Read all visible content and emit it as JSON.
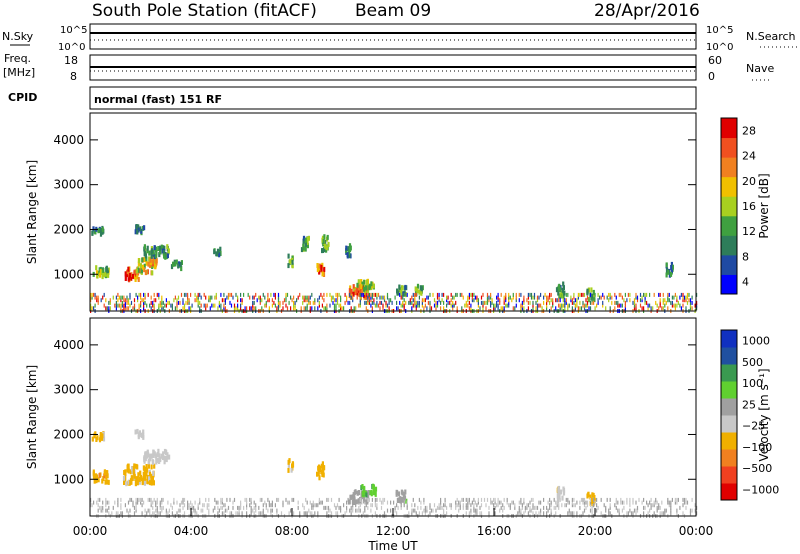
{
  "header": {
    "station": "South Pole Station (fitACF)",
    "beam": "Beam 09",
    "date": "28/Apr/2016"
  },
  "top_panels": {
    "nsky_label": "N.Sky",
    "nsky_ticks": [
      "10^5",
      "10^0"
    ],
    "nsearch_label": "N.Search",
    "nsearch_ticks": [
      "10^5",
      "10^0"
    ],
    "freq_label_1": "Freq.",
    "freq_label_2": "[MHz]",
    "freq_ticks": [
      "18",
      "8"
    ],
    "nave_label": "Nave",
    "nave_ticks": [
      "60",
      "0"
    ],
    "cpid_label": "CPID",
    "cpid_text": "normal (fast) 151 RF"
  },
  "colors": {
    "power_scale": [
      "#0000ff",
      "#1f4aa3",
      "#2e7d5a",
      "#3fa040",
      "#a8d020",
      "#f0c000",
      "#f08020",
      "#f05020",
      "#e00000"
    ],
    "velocity_scale": [
      "#e00000",
      "#f04020",
      "#f08020",
      "#f0b000",
      "#c8c8c8",
      "#a0a0a0",
      "#60d030",
      "#3a9a50",
      "#2050a0",
      "#1030c0"
    ]
  },
  "chart_data": [
    {
      "type": "heatmap",
      "name": "power",
      "ylabel": "Slant Range [km]",
      "yticks": [
        "4000",
        "3000",
        "2000",
        "1000"
      ],
      "ylim": [
        180,
        4600
      ],
      "colorbar_label": "Power [dB]",
      "colorbar_ticks": [
        "28",
        "24",
        "20",
        "16",
        "12",
        "8",
        "4"
      ],
      "clim": [
        0,
        30
      ],
      "blobs": [
        {
          "t": 0.4,
          "r": 1050,
          "dt": 0.6,
          "dr": 250,
          "v": 14
        },
        {
          "t": 0.3,
          "r": 1950,
          "dt": 0.5,
          "dr": 150,
          "v": 8
        },
        {
          "t": 1.6,
          "r": 1000,
          "dt": 0.6,
          "dr": 250,
          "v": 24
        },
        {
          "t": 2.2,
          "r": 1200,
          "dt": 0.8,
          "dr": 350,
          "v": 18
        },
        {
          "t": 2.6,
          "r": 1500,
          "dt": 1.0,
          "dr": 250,
          "v": 10
        },
        {
          "t": 1.9,
          "r": 2000,
          "dt": 0.4,
          "dr": 150,
          "v": 8
        },
        {
          "t": 3.4,
          "r": 1200,
          "dt": 0.4,
          "dr": 150,
          "v": 8
        },
        {
          "t": 5.0,
          "r": 1500,
          "dt": 0.3,
          "dr": 150,
          "v": 8
        },
        {
          "t": 7.9,
          "r": 1300,
          "dt": 0.2,
          "dr": 250,
          "v": 12
        },
        {
          "t": 8.5,
          "r": 1700,
          "dt": 0.3,
          "dr": 300,
          "v": 10
        },
        {
          "t": 9.1,
          "r": 1100,
          "dt": 0.3,
          "dr": 250,
          "v": 26
        },
        {
          "t": 9.3,
          "r": 1700,
          "dt": 0.3,
          "dr": 350,
          "v": 12
        },
        {
          "t": 10.2,
          "r": 1500,
          "dt": 0.2,
          "dr": 300,
          "v": 8
        },
        {
          "t": 10.6,
          "r": 600,
          "dt": 0.8,
          "dr": 250,
          "v": 22
        },
        {
          "t": 10.9,
          "r": 750,
          "dt": 0.7,
          "dr": 200,
          "v": 16
        },
        {
          "t": 12.3,
          "r": 600,
          "dt": 0.4,
          "dr": 250,
          "v": 10
        },
        {
          "t": 13.0,
          "r": 650,
          "dt": 0.3,
          "dr": 200,
          "v": 12
        },
        {
          "t": 18.6,
          "r": 650,
          "dt": 0.3,
          "dr": 300,
          "v": 10
        },
        {
          "t": 19.8,
          "r": 550,
          "dt": 0.3,
          "dr": 250,
          "v": 12
        },
        {
          "t": 22.9,
          "r": 1100,
          "dt": 0.3,
          "dr": 250,
          "v": 8
        }
      ],
      "background_band": {
        "r_min": 180,
        "r_max": 600,
        "density": 0.35
      }
    },
    {
      "type": "heatmap",
      "name": "velocity",
      "ylabel": "Slant Range [km]",
      "xlabel": "Time UT",
      "yticks": [
        "4000",
        "3000",
        "2000",
        "1000"
      ],
      "xticks": [
        "00:00",
        "04:00",
        "08:00",
        "12:00",
        "16:00",
        "20:00",
        "00:00"
      ],
      "xlim": [
        0,
        24
      ],
      "ylim": [
        180,
        4600
      ],
      "colorbar_label": "Velocity [m s⁻¹]",
      "colorbar_ticks": [
        "1000",
        "500",
        "100",
        "25",
        "−25",
        "−100",
        "−500",
        "−1000"
      ],
      "clim": [
        -1200,
        1200
      ],
      "blobs": [
        {
          "t": 0.4,
          "r": 1050,
          "dt": 0.6,
          "dr": 250,
          "v": -400
        },
        {
          "t": 0.3,
          "r": 1950,
          "dt": 0.5,
          "dr": 150,
          "v": -300
        },
        {
          "t": 1.9,
          "r": 1100,
          "dt": 1.2,
          "dr": 400,
          "v": -300
        },
        {
          "t": 2.6,
          "r": 1500,
          "dt": 1.0,
          "dr": 250,
          "v": -150
        },
        {
          "t": 1.9,
          "r": 2000,
          "dt": 0.4,
          "dr": 150,
          "v": -200
        },
        {
          "t": 7.9,
          "r": 1300,
          "dt": 0.2,
          "dr": 250,
          "v": -300
        },
        {
          "t": 9.1,
          "r": 1200,
          "dt": 0.3,
          "dr": 350,
          "v": -400
        },
        {
          "t": 10.6,
          "r": 600,
          "dt": 0.8,
          "dr": 250,
          "v": 150
        },
        {
          "t": 11.0,
          "r": 750,
          "dt": 0.6,
          "dr": 200,
          "v": 400
        },
        {
          "t": 12.3,
          "r": 600,
          "dt": 0.4,
          "dr": 250,
          "v": 200
        },
        {
          "t": 18.6,
          "r": 650,
          "dt": 0.3,
          "dr": 300,
          "v": -200
        },
        {
          "t": 19.8,
          "r": 550,
          "dt": 0.3,
          "dr": 250,
          "v": -300
        }
      ],
      "background_band": {
        "r_min": 180,
        "r_max": 600,
        "density": 0.3
      }
    }
  ]
}
